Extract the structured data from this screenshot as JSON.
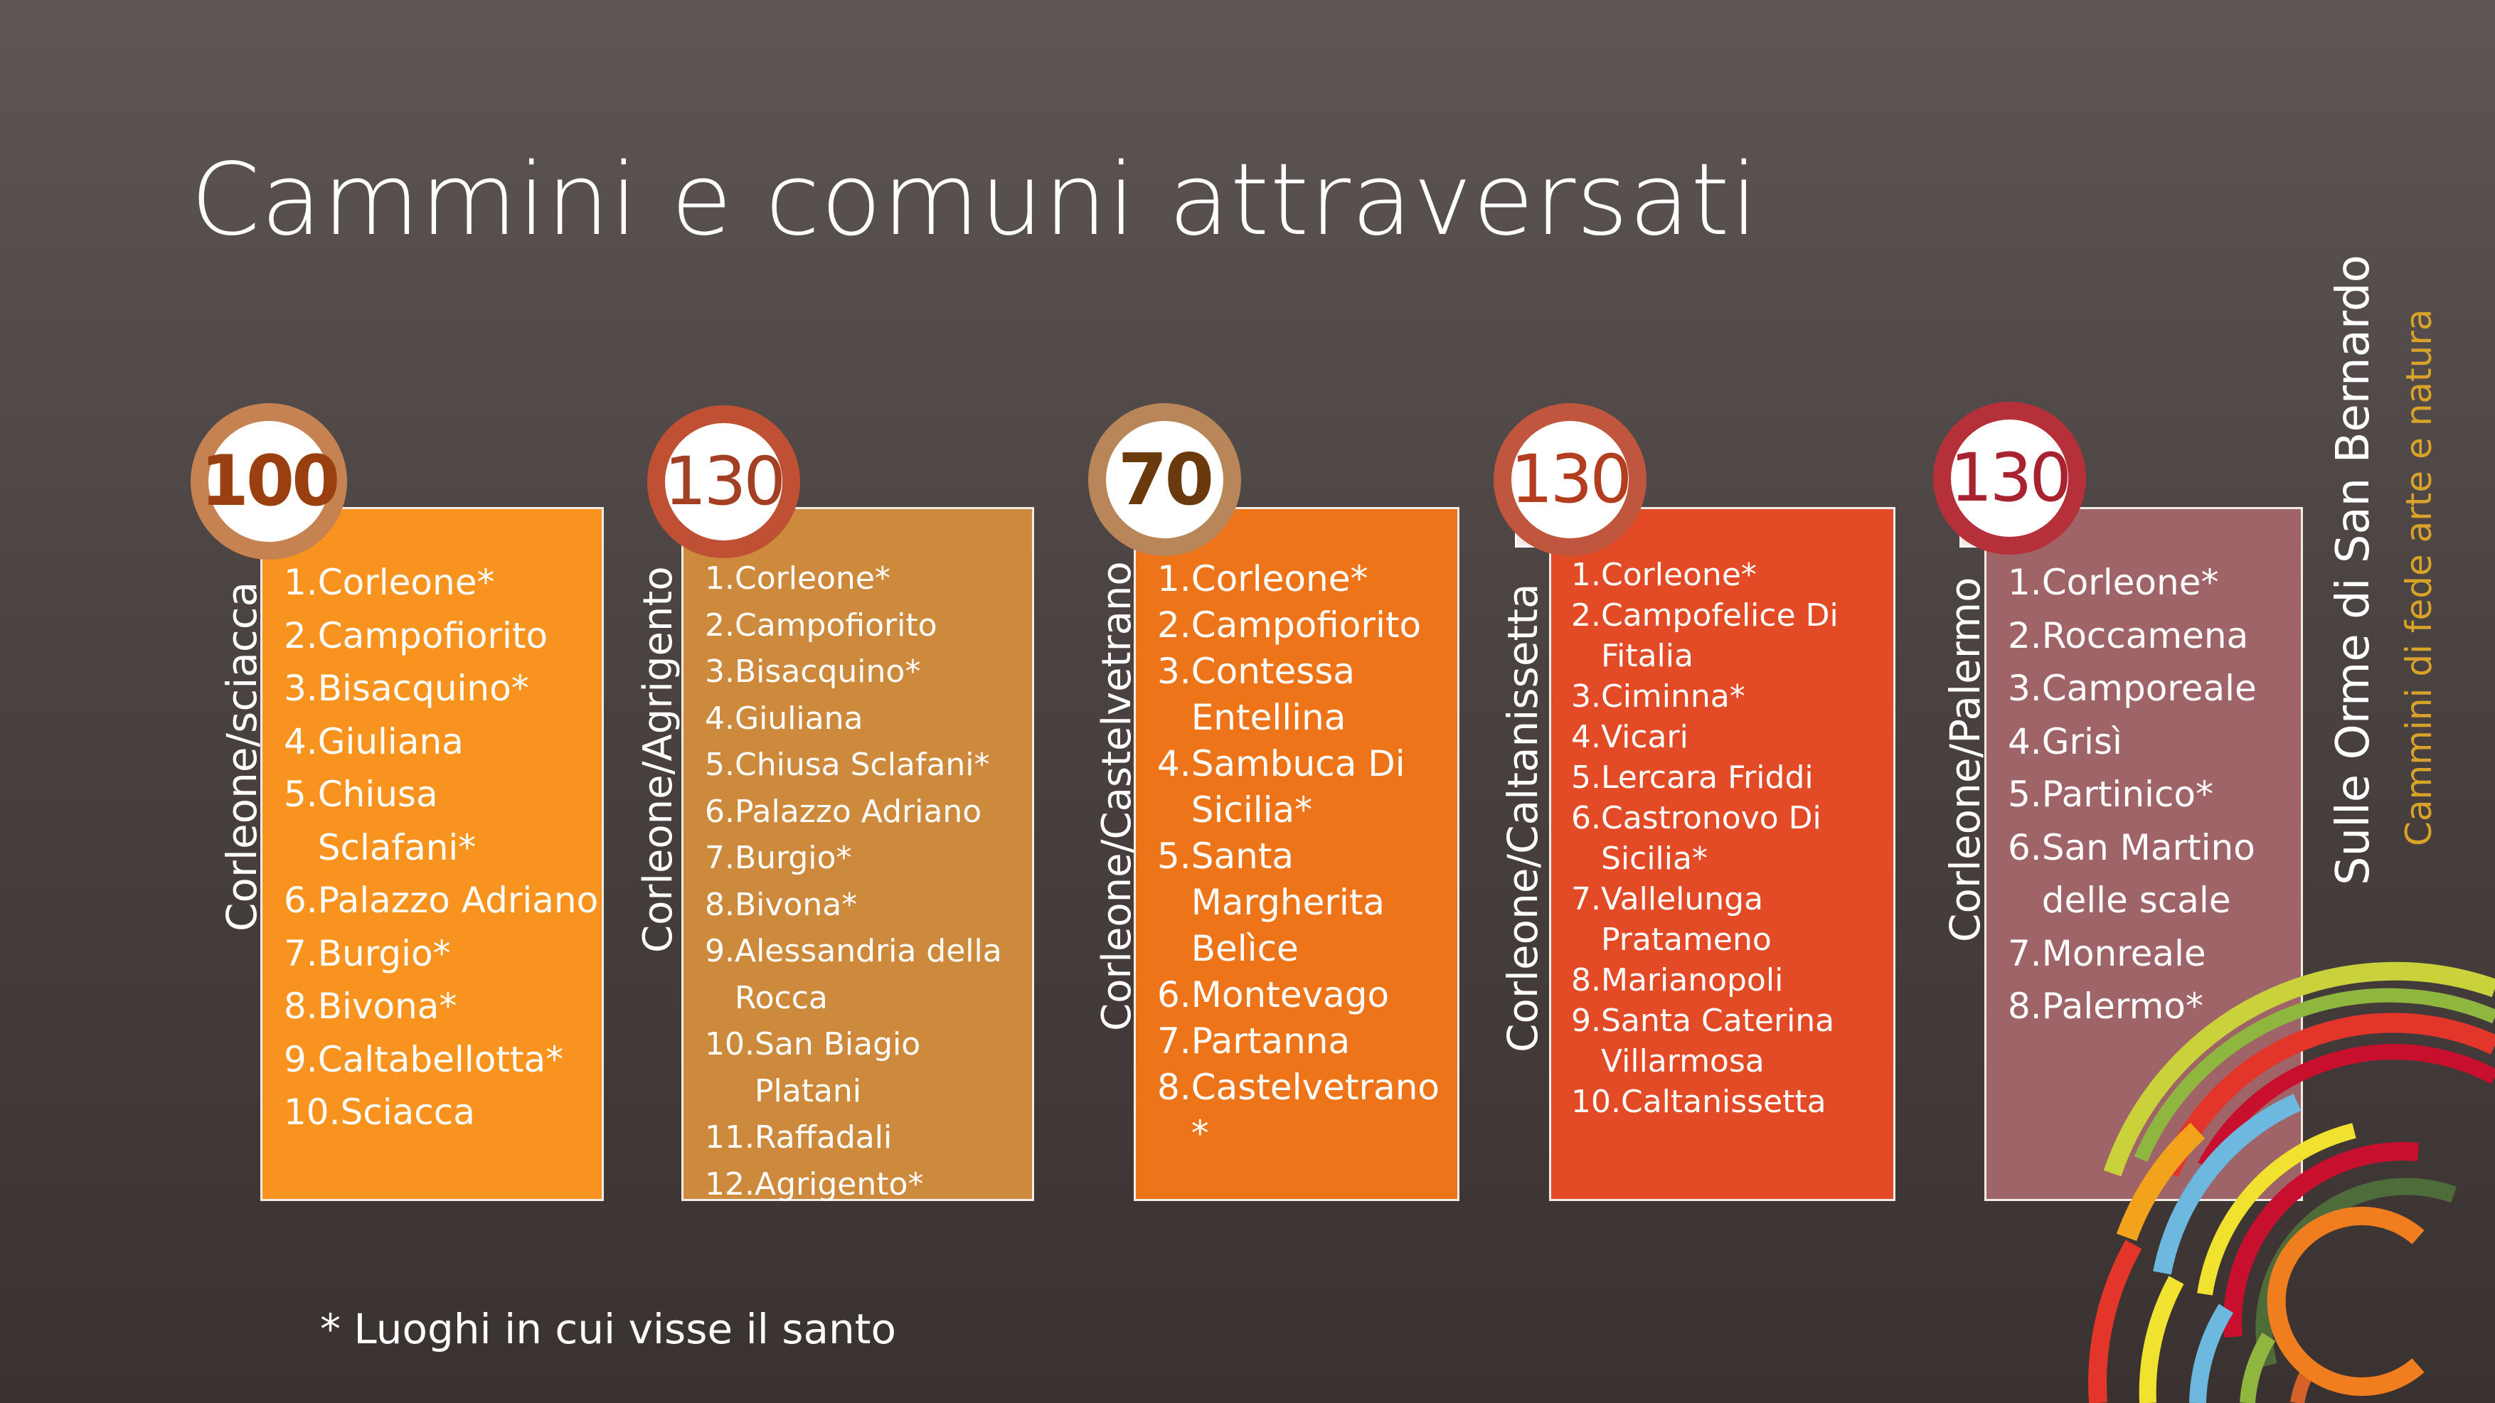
{
  "slide": {
    "title": "Cammini e comuni attraversati",
    "footnote": "* Luoghi in cui visse il santo",
    "brand": {
      "name": "Sulle Orme di San Bernardo",
      "tagline": "Cammini di fede arte e natura"
    }
  },
  "routes": [
    {
      "name": "Corleone/sciacca",
      "distance": "100",
      "color": "#f7931e",
      "stops": [
        "Corleone*",
        "Campofiorito",
        "Bisacquino*",
        "Giuliana",
        "Chiusa Sclafani*",
        "Palazzo Adriano",
        "Burgio*",
        "Bivona*",
        "Caltabellotta*",
        "Sciacca"
      ]
    },
    {
      "name": "Corleone/Agrigento",
      "distance": "130",
      "color": "#cd8a3d",
      "stops": [
        "Corleone*",
        "Campofiorito",
        "Bisacquino*",
        "Giuliana",
        "Chiusa Sclafani*",
        "Palazzo Adriano",
        "Burgio*",
        "Bivona*",
        "Alessandria della Rocca",
        "San Biagio Platani",
        "Raffadali",
        "Agrigento*"
      ]
    },
    {
      "name": "Corleone/Castelvetrano",
      "distance": "70",
      "color": "#ee7419",
      "stops": [
        "Corleone*",
        "Campofiorito",
        "Contessa Entellina",
        "Sambuca Di Sicilia*",
        "Santa Margherita Belìce",
        "Montevago",
        "Partanna",
        "Castelvetrano *"
      ]
    },
    {
      "name": "Corleone/Caltanissetta",
      "distance": "130",
      "color": "#e24b26",
      "stops": [
        "Corleone*",
        "Campofelice Di Fitalia",
        "Ciminna*",
        "Vicari",
        "Lercara Friddi",
        "Castronovo Di Sicilia*",
        "Vallelunga Pratameno",
        "Marianopoli",
        "Santa Caterina Villarmosa",
        "Caltanissetta"
      ]
    },
    {
      "name": "Corleone/Palermo",
      "distance": "130",
      "color": "#9e6467",
      "stops": [
        "Corleone*",
        "Roccamena",
        "Camporeale",
        "Grisì",
        "Partinico*",
        "San Martino delle scale",
        "Monreale",
        "Palermo*"
      ]
    }
  ]
}
